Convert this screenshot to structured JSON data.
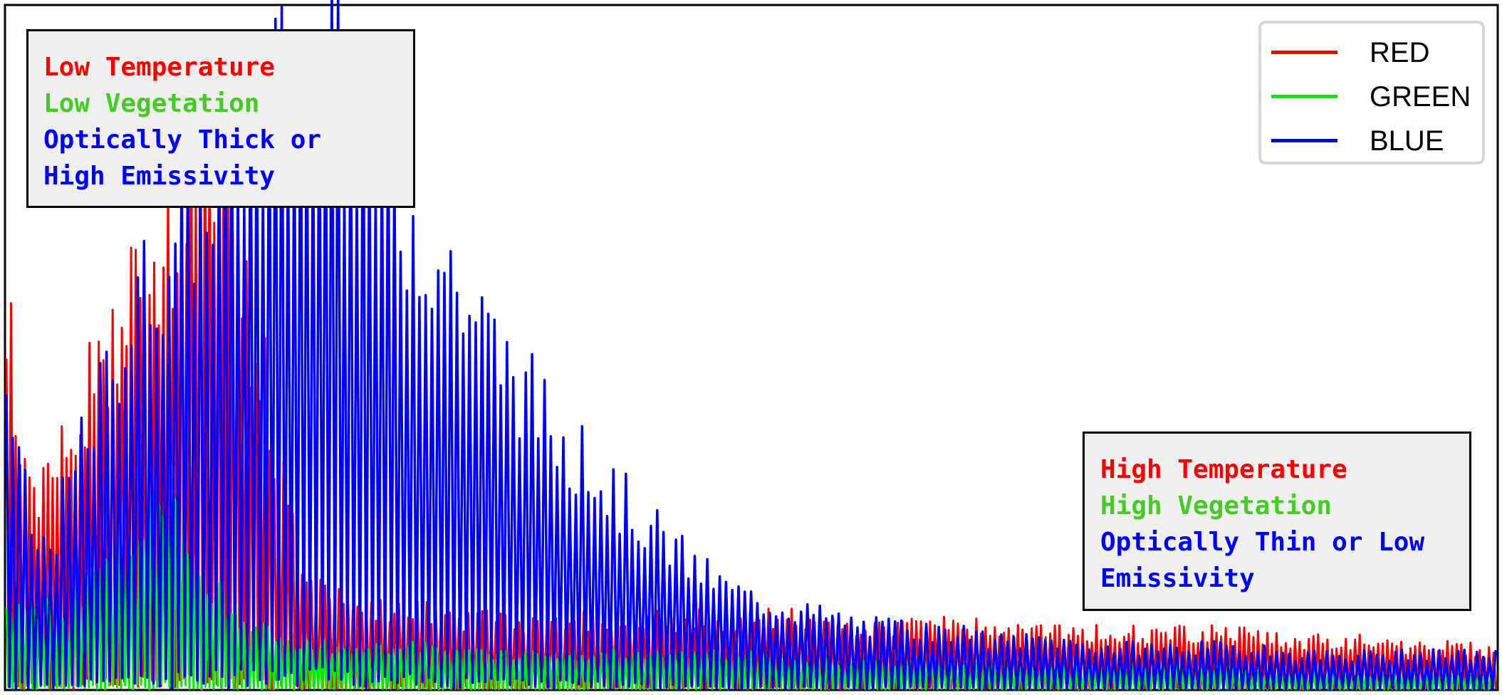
{
  "chart_data": {
    "type": "line",
    "title": "",
    "xlabel": "",
    "ylabel": "",
    "grid": false,
    "axes_visible": false,
    "legend_position": "top-right",
    "xlim": [
      0,
      1000
    ],
    "ylim": [
      0,
      1.0
    ],
    "note": "Dense oscillating spectral series; values sampled as envelope peaks along the x index, troughs fall to ~0.",
    "series": [
      {
        "name": "RED",
        "color": "#ff0000",
        "peak_x": [
          0,
          10,
          20,
          30,
          40,
          50,
          60,
          70,
          80,
          90,
          100,
          110,
          120,
          130,
          140,
          150,
          160,
          170,
          180,
          190,
          200,
          220,
          240,
          260,
          280,
          300,
          340,
          380,
          420,
          460,
          500,
          540,
          580,
          620,
          660,
          700,
          740,
          780,
          820,
          860,
          900,
          940,
          980,
          1000
        ],
        "peak_y": [
          0.55,
          0.37,
          0.28,
          0.32,
          0.36,
          0.41,
          0.45,
          0.5,
          0.56,
          0.6,
          0.62,
          0.66,
          0.72,
          0.78,
          0.74,
          0.66,
          0.58,
          0.48,
          0.36,
          0.24,
          0.17,
          0.13,
          0.12,
          0.11,
          0.11,
          0.1,
          0.1,
          0.1,
          0.1,
          0.1,
          0.1,
          0.1,
          0.09,
          0.09,
          0.09,
          0.08,
          0.08,
          0.08,
          0.08,
          0.07,
          0.07,
          0.06,
          0.06,
          0.05
        ]
      },
      {
        "name": "GREEN",
        "color": "#00ee00",
        "peak_x": [
          0,
          20,
          40,
          60,
          80,
          100,
          110,
          120,
          130,
          140,
          150,
          160,
          170,
          180,
          190,
          200,
          220,
          240,
          260,
          280,
          300,
          340,
          380,
          420,
          460,
          500,
          540,
          580,
          620,
          660,
          700,
          740,
          780,
          820,
          860,
          900,
          940,
          980,
          1000
        ],
        "peak_y": [
          0.11,
          0.11,
          0.12,
          0.16,
          0.22,
          0.27,
          0.29,
          0.23,
          0.18,
          0.14,
          0.12,
          0.1,
          0.09,
          0.08,
          0.07,
          0.07,
          0.06,
          0.06,
          0.06,
          0.06,
          0.05,
          0.05,
          0.05,
          0.05,
          0.05,
          0.05,
          0.04,
          0.04,
          0.04,
          0.03,
          0.03,
          0.03,
          0.03,
          0.03,
          0.02,
          0.02,
          0.02,
          0.02,
          0.02
        ]
      },
      {
        "name": "BLUE",
        "color": "#0000ff",
        "peak_x": [
          0,
          10,
          20,
          30,
          40,
          60,
          80,
          100,
          120,
          140,
          160,
          180,
          200,
          220,
          240,
          260,
          280,
          300,
          320,
          340,
          360,
          380,
          400,
          420,
          440,
          460,
          480,
          500,
          520,
          540,
          560,
          580,
          600,
          620,
          640,
          660,
          700,
          740,
          780,
          820,
          860,
          900,
          940,
          980,
          1000
        ],
        "peak_y": [
          0.44,
          0.3,
          0.2,
          0.21,
          0.28,
          0.4,
          0.52,
          0.61,
          0.68,
          0.75,
          0.82,
          0.87,
          0.91,
          0.88,
          0.82,
          0.72,
          0.67,
          0.6,
          0.52,
          0.46,
          0.4,
          0.34,
          0.3,
          0.26,
          0.22,
          0.18,
          0.15,
          0.13,
          0.12,
          0.11,
          0.1,
          0.09,
          0.09,
          0.08,
          0.08,
          0.07,
          0.07,
          0.06,
          0.06,
          0.06,
          0.05,
          0.05,
          0.05,
          0.05,
          0.05
        ]
      }
    ],
    "legend": [
      {
        "label": "RED",
        "color": "#ff0000"
      },
      {
        "label": "GREEN",
        "color": "#00ee00"
      },
      {
        "label": "BLUE",
        "color": "#0000ff"
      }
    ]
  },
  "annotations": {
    "left": [
      {
        "text": "Low Temperature",
        "color": "#ff0000"
      },
      {
        "text": "Low Vegetation",
        "color": "#44cc22"
      },
      {
        "text": "Optically Thick or",
        "color": "#0000ff"
      },
      {
        "text": "High Emissivity",
        "color": "#0000ff"
      }
    ],
    "right": [
      {
        "text": "High Temperature",
        "color": "#ff0000"
      },
      {
        "text": "High Vegetation",
        "color": "#44cc22"
      },
      {
        "text": "Optically Thin or Low",
        "color": "#0000ff"
      },
      {
        "text": "Emissivity",
        "color": "#0000ff"
      }
    ]
  }
}
